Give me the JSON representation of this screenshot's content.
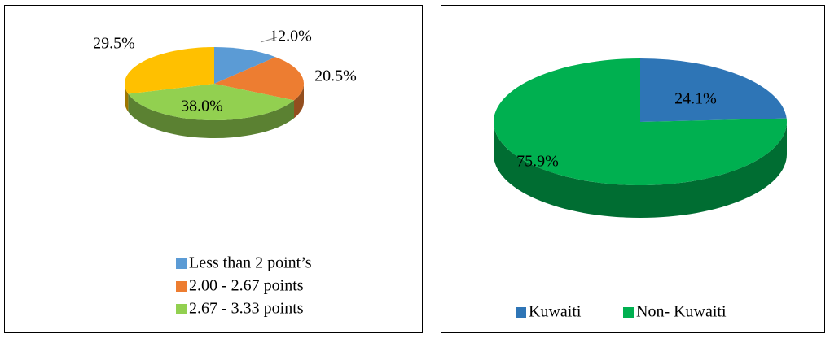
{
  "chart_data": [
    {
      "type": "pie",
      "categories": [
        "Less than 2 point’s",
        "2.00 - 2.67 points",
        "2.67 - 3.33 points",
        null
      ],
      "values": [
        12.0,
        20.5,
        38.0,
        29.5
      ],
      "value_labels": [
        "12.0%",
        "20.5%",
        "38.0%",
        "29.5%"
      ],
      "colors": [
        "#5b9bd5",
        "#ed7d31",
        "#92d050",
        "#ffc000"
      ],
      "legend": "bottom"
    },
    {
      "type": "pie",
      "categories": [
        "Kuwaiti",
        "Non- Kuwaiti"
      ],
      "values": [
        24.1,
        75.9
      ],
      "value_labels": [
        "24.1%",
        "75.9%"
      ],
      "colors": [
        "#2e75b6",
        "#00b050"
      ],
      "legend": "bottom"
    }
  ]
}
